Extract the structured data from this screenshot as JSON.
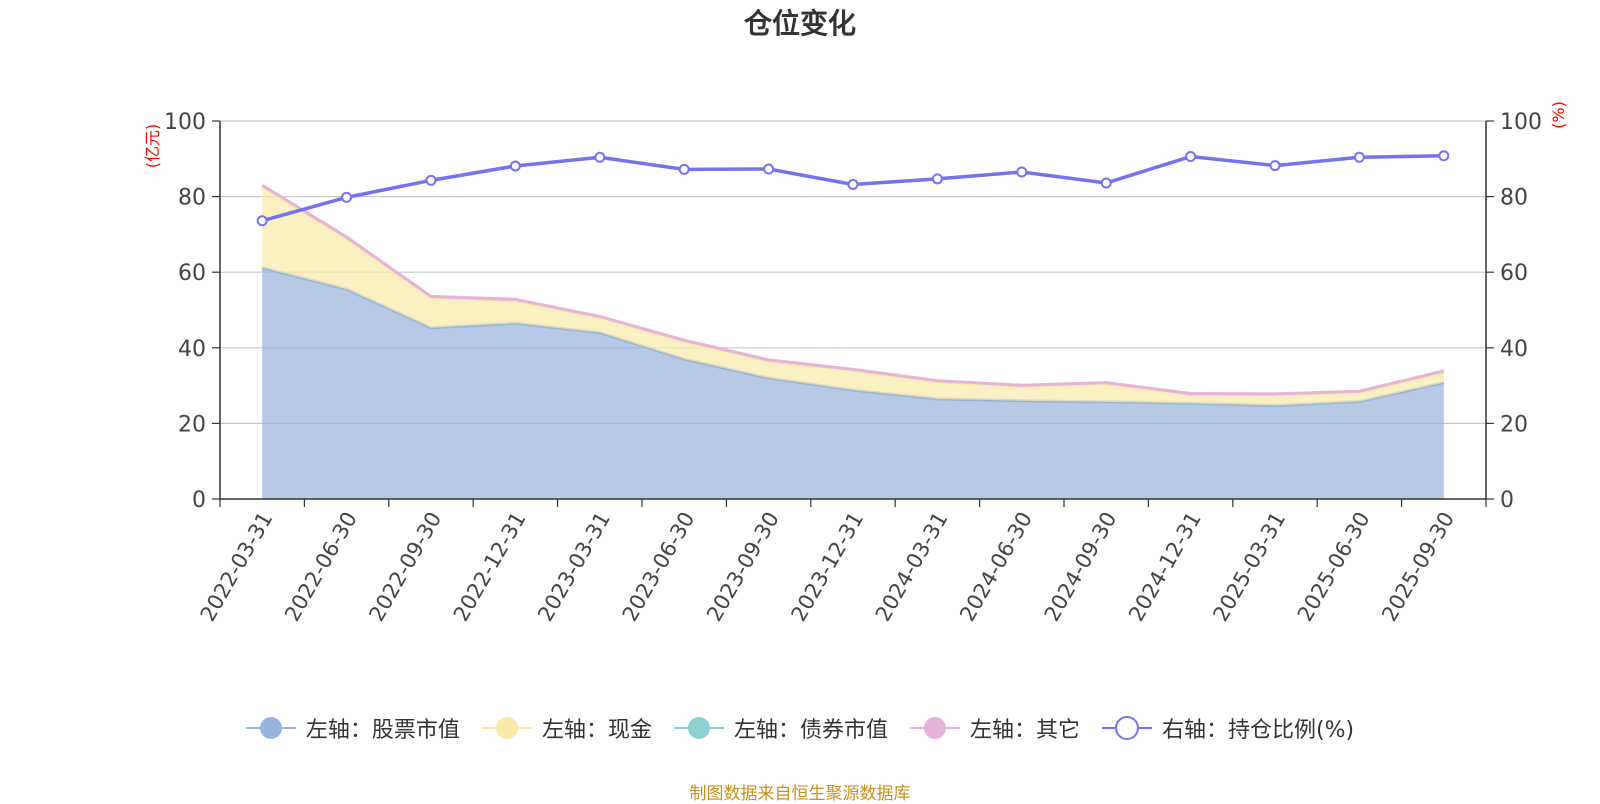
{
  "chart_data": {
    "type": "area",
    "title": "仓位变化",
    "ylabel_left": "(亿元)",
    "ylabel_right": "(%)",
    "ylim_left": [
      0,
      100
    ],
    "ylim_right": [
      0,
      100
    ],
    "y_ticks": [
      "0",
      "20",
      "40",
      "60",
      "80",
      "100"
    ],
    "grid": true,
    "stacked": true,
    "categories": [
      "2022-03-31",
      "2022-06-30",
      "2022-09-30",
      "2022-12-31",
      "2023-03-31",
      "2023-06-30",
      "2023-09-30",
      "2023-12-31",
      "2024-03-31",
      "2024-06-30",
      "2024-09-30",
      "2024-12-31",
      "2025-03-31",
      "2025-06-30",
      "2025-09-30"
    ],
    "series": [
      {
        "name": "左轴：股票市值",
        "axis": "left",
        "type": "area",
        "color": "#97b4dd",
        "values": [
          61.2,
          55.5,
          45.3,
          46.5,
          44.0,
          37.0,
          32.0,
          28.8,
          26.5,
          26.0,
          25.7,
          25.3,
          24.7,
          25.8,
          30.8
        ]
      },
      {
        "name": "左轴：现金",
        "axis": "left",
        "type": "area",
        "color": "#f9e9a7",
        "values": [
          21.5,
          13.5,
          8.0,
          6.0,
          4.0,
          4.7,
          4.5,
          5.2,
          4.5,
          3.8,
          4.8,
          2.3,
          2.8,
          2.4,
          2.8
        ]
      },
      {
        "name": "左轴：债券市值",
        "axis": "left",
        "type": "area",
        "color": "#8ccfd1",
        "values": [
          0,
          0,
          0,
          0,
          0,
          0,
          0,
          0,
          0,
          0,
          0,
          0,
          0,
          0,
          0
        ]
      },
      {
        "name": "左轴：其它",
        "axis": "left",
        "type": "area",
        "color": "#e6b2d9",
        "values": [
          0.3,
          0.3,
          0.3,
          0.3,
          0.3,
          0.3,
          0.3,
          0.3,
          0.3,
          0.3,
          0.3,
          0.3,
          0.3,
          0.3,
          0.3
        ]
      },
      {
        "name": "右轴：持仓比例(%)",
        "axis": "right",
        "type": "line",
        "color": "#7373ee",
        "values": [
          73.6,
          79.8,
          84.3,
          88.1,
          90.4,
          87.2,
          87.3,
          83.2,
          84.7,
          86.5,
          83.6,
          90.6,
          88.2,
          90.4,
          90.8
        ]
      }
    ]
  },
  "source_note": "制图数据来自恒生聚源数据库",
  "colors": {
    "axis": "#333333",
    "grid": "#c8c8c8",
    "axis_name": "#ff0000",
    "source": "#c8921b"
  }
}
